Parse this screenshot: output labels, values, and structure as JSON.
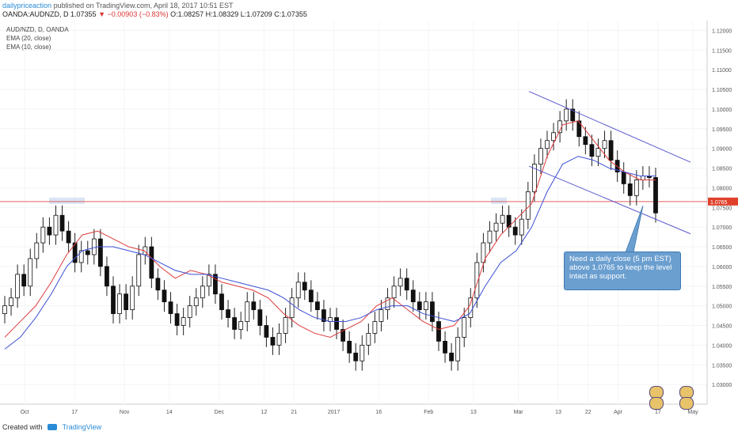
{
  "header": {
    "author": "dailypriceaction",
    "published": "published on TradingView.com, April 18, 2017 10:51 EST",
    "symbol": "OANDA:AUDNZD, D",
    "last": "1.07355",
    "change": "−0.00903 (−0.83%)",
    "open": "O:1.08257",
    "high": "H:1.08329",
    "low": "L:1.07209",
    "close": "C:1.07355"
  },
  "legend": {
    "title": "AUD/NZD, D, OANDA",
    "ema20": "EMA (20, close)",
    "ema10": "EMA (10, close)"
  },
  "callout": {
    "text": "Need a daily close (5 pm EST) above 1.0765 to keep the level intact as support."
  },
  "footer": {
    "created_with": "Created with",
    "brand": "TradingView"
  },
  "colors": {
    "support_line": "#e06060",
    "ema10": "#e03b3b",
    "ema20": "#3b4fd6",
    "channel": "#5a5ad0",
    "callout": "#6b9fd0",
    "price_label": "#e0412a"
  },
  "chart_data": {
    "type": "candlestick",
    "title": "AUD/NZD, D, OANDA",
    "x_ticks": [
      "Oct",
      "17",
      "Nov",
      "14",
      "Dec",
      "12",
      "21",
      "2017",
      "16",
      "Feb",
      "13",
      "Mar",
      "13",
      "22",
      "Apr",
      "17",
      "May"
    ],
    "y_ticks": [
      "1.12000",
      "1.11500",
      "1.11000",
      "1.10500",
      "1.10000",
      "1.09500",
      "1.09000",
      "1.08500",
      "1.08000",
      "1.07500",
      "1.07000",
      "1.06500",
      "1.06000",
      "1.05500",
      "1.05000",
      "1.04500",
      "1.04000",
      "1.03500",
      "1.03000"
    ],
    "ylim": [
      1.025,
      1.1225
    ],
    "support_level": 1.0765,
    "price_label": "1.0765",
    "series": [
      {
        "name": "EMA (10, close)",
        "values": [
          1.042,
          1.046,
          1.05,
          1.056,
          1.063,
          1.068,
          1.069,
          1.067,
          1.065,
          1.064,
          1.06,
          1.057,
          1.059,
          1.058,
          1.056,
          1.055,
          1.054,
          1.052,
          1.048,
          1.045,
          1.043,
          1.042,
          1.044,
          1.046,
          1.05,
          1.052,
          1.049,
          1.046,
          1.044,
          1.045,
          1.05,
          1.062,
          1.068,
          1.072,
          1.076,
          1.088,
          1.096,
          1.097,
          1.092,
          1.087,
          1.084,
          1.082,
          1.082
        ]
      },
      {
        "name": "EMA (20, close)",
        "values": [
          1.039,
          1.042,
          1.047,
          1.053,
          1.06,
          1.064,
          1.065,
          1.065,
          1.064,
          1.063,
          1.061,
          1.059,
          1.058,
          1.058,
          1.057,
          1.056,
          1.055,
          1.054,
          1.052,
          1.049,
          1.047,
          1.046,
          1.046,
          1.047,
          1.049,
          1.05,
          1.05,
          1.048,
          1.047,
          1.046,
          1.048,
          1.055,
          1.061,
          1.064,
          1.07,
          1.079,
          1.086,
          1.088,
          1.087,
          1.085,
          1.084,
          1.083,
          1.083
        ]
      }
    ],
    "closes": [
      1.05,
      1.052,
      1.058,
      1.055,
      1.062,
      1.066,
      1.07,
      1.068,
      1.073,
      1.069,
      1.066,
      1.061,
      1.064,
      1.063,
      1.067,
      1.06,
      1.055,
      1.048,
      1.053,
      1.049,
      1.055,
      1.063,
      1.065,
      1.057,
      1.054,
      1.051,
      1.048,
      1.045,
      1.047,
      1.05,
      1.052,
      1.055,
      1.058,
      1.053,
      1.049,
      1.047,
      1.044,
      1.046,
      1.051,
      1.049,
      1.045,
      1.042,
      1.04,
      1.043,
      1.047,
      1.052,
      1.056,
      1.054,
      1.051,
      1.049,
      1.046,
      1.047,
      1.044,
      1.041,
      1.038,
      1.036,
      1.04,
      1.043,
      1.046,
      1.049,
      1.052,
      1.055,
      1.057,
      1.054,
      1.051,
      1.049,
      1.051,
      1.046,
      1.041,
      1.038,
      1.036,
      1.042,
      1.047,
      1.052,
      1.061,
      1.066,
      1.069,
      1.071,
      1.073,
      1.07,
      1.068,
      1.072,
      1.079,
      1.086,
      1.09,
      1.092,
      1.094,
      1.097,
      1.1,
      1.097,
      1.093,
      1.091,
      1.088,
      1.09,
      1.092,
      1.087,
      1.084,
      1.081,
      1.078,
      1.082,
      1.083,
      1.0826,
      1.0736
    ]
  }
}
